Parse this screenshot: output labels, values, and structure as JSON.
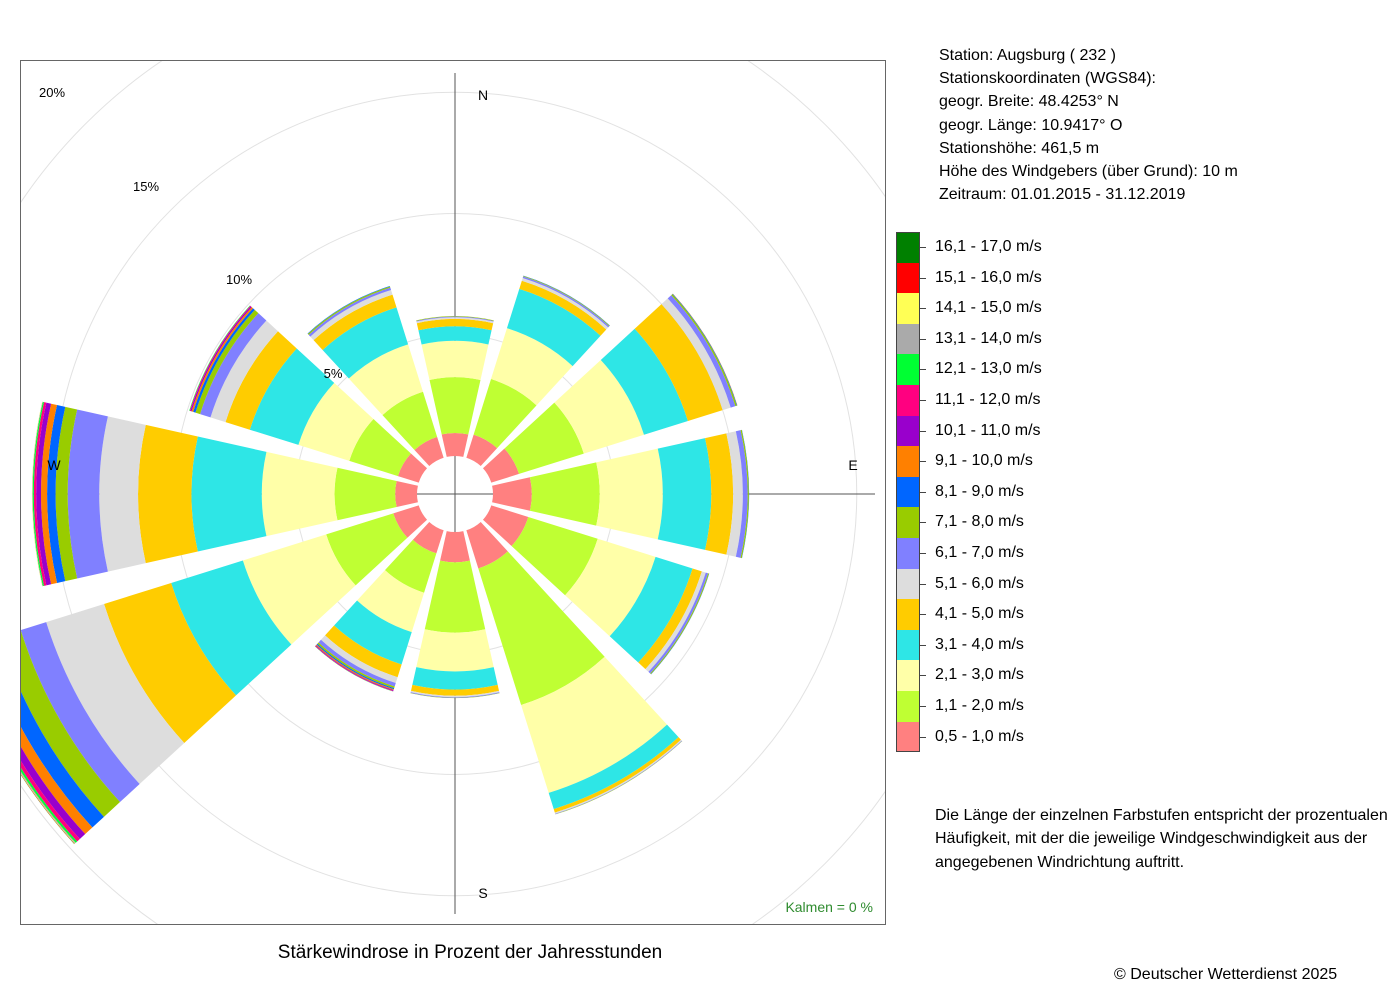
{
  "header": {
    "station": "Station:  Augsburg  ( 232 )",
    "coords_title": "Stationskoordinaten (WGS84):",
    "latitude": "geogr. Breite: 48.4253° N",
    "longitude": "geogr. Länge: 10.9417° O",
    "elevation": "Stationshöhe: 461,5 m",
    "sensor_height": "Höhe des Windgebers (über Grund): 10 m",
    "period": "Zeitraum: 01.01.2015 - 31.12.2019"
  },
  "note": [
    "Die Länge der einzelnen Farbstufen entspricht der prozentualen",
    "Häufigkeit, mit der die jeweilige Windgeschwindigkeit aus der",
    "angegebenen Windrichtung auftritt."
  ],
  "calm": "Kalmen  =  0 %",
  "copyright": "© Deutscher Wetterdienst  2025",
  "chart_data": {
    "type": "windrose",
    "title": "Stärkewindrose in Prozent der Jahresstunden",
    "unit": "%",
    "ring_values": [
      5,
      10,
      15,
      20
    ],
    "ring_labels": [
      "5%",
      "10%",
      "15%",
      "20%"
    ],
    "compass_labels": {
      "N": "N",
      "E": "E",
      "S": "S",
      "W": "W"
    },
    "directions_deg": [
      0,
      30,
      60,
      90,
      120,
      150,
      180,
      210,
      240,
      270,
      300,
      330
    ],
    "speed_classes": [
      {
        "label": "0,5 - 1,0 m/s",
        "color": "#ff8080"
      },
      {
        "label": "1,1 - 2,0 m/s",
        "color": "#bfff33"
      },
      {
        "label": "2,1 - 3,0 m/s",
        "color": "#ffffa8"
      },
      {
        "label": "3,1 - 4,0 m/s",
        "color": "#2ee6e6"
      },
      {
        "label": "4,1 - 5,0 m/s",
        "color": "#ffcc00"
      },
      {
        "label": "5,1 - 6,0 m/s",
        "color": "#dddddd"
      },
      {
        "label": "6,1 - 7,0 m/s",
        "color": "#8080ff"
      },
      {
        "label": "7,1 - 8,0 m/s",
        "color": "#99cc00"
      },
      {
        "label": "8,1 - 9,0 m/s",
        "color": "#0066ff"
      },
      {
        "label": "9,1 - 10,0 m/s",
        "color": "#ff8000"
      },
      {
        "label": "10,1 - 11,0 m/s",
        "color": "#9900cc"
      },
      {
        "label": "11,1 - 12,0 m/s",
        "color": "#ff0080"
      },
      {
        "label": "12,1 - 13,0 m/s",
        "color": "#00ff33"
      },
      {
        "label": "13,1 - 14,0 m/s",
        "color": "#aaaaaa"
      },
      {
        "label": "14,1 - 15,0 m/s",
        "color": "#ffff55"
      },
      {
        "label": "15,1 - 16,0 m/s",
        "color": "#ff0000"
      },
      {
        "label": "16,1 - 17,0 m/s",
        "color": "#008000"
      }
    ],
    "series": [
      {
        "dir": 0,
        "values": [
          0.95,
          2.3,
          1.5,
          0.6,
          0.3,
          0.07,
          0.03,
          0.02,
          0,
          0,
          0,
          0,
          0,
          0,
          0,
          0,
          0
        ]
      },
      {
        "dir": 30,
        "values": [
          1.0,
          2.4,
          2.2,
          1.7,
          0.35,
          0.12,
          0.06,
          0.03,
          0.01,
          0,
          0,
          0,
          0,
          0,
          0,
          0,
          0
        ]
      },
      {
        "dir": 60,
        "values": [
          1.2,
          2.8,
          2.6,
          1.9,
          1.5,
          0.35,
          0.2,
          0.06,
          0.02,
          0.01,
          0,
          0,
          0,
          0,
          0,
          0,
          0
        ]
      },
      {
        "dir": 90,
        "values": [
          1.6,
          2.8,
          2.6,
          2.0,
          0.9,
          0.4,
          0.2,
          0.05,
          0.01,
          0,
          0,
          0,
          0,
          0,
          0,
          0,
          0
        ]
      },
      {
        "dir": 120,
        "values": [
          1.6,
          3.0,
          2.5,
          1.6,
          0.4,
          0.17,
          0.1,
          0.04,
          0.01,
          0,
          0,
          0,
          0,
          0,
          0,
          0,
          0
        ]
      },
      {
        "dir": 150,
        "values": [
          1.65,
          5.9,
          3.8,
          0.7,
          0.15,
          0.05,
          0.02,
          0.01,
          0,
          0,
          0,
          0,
          0,
          0,
          0,
          0,
          0
        ]
      },
      {
        "dir": 180,
        "values": [
          1.25,
          2.9,
          1.6,
          0.75,
          0.25,
          0.06,
          0.03,
          0.01,
          0,
          0,
          0,
          0,
          0,
          0,
          0,
          0,
          0
        ]
      },
      {
        "dir": 210,
        "values": [
          1.0,
          1.7,
          1.7,
          1.4,
          0.55,
          0.25,
          0.15,
          0.07,
          0.05,
          0.04,
          0.03,
          0.02,
          0.01,
          0,
          0,
          0,
          0
        ]
      },
      {
        "dir": 240,
        "values": [
          1.1,
          2.9,
          3.6,
          3.1,
          2.9,
          2.5,
          1.1,
          0.9,
          0.65,
          0.4,
          0.3,
          0.15,
          0.08,
          0.04,
          0.02,
          0.01,
          0.01
        ]
      },
      {
        "dir": 270,
        "values": [
          0.9,
          2.5,
          3.0,
          2.9,
          2.2,
          1.6,
          1.3,
          0.5,
          0.35,
          0.25,
          0.2,
          0.1,
          0.05,
          0.02,
          0.01,
          0,
          0
        ]
      },
      {
        "dir": 300,
        "values": [
          0.9,
          2.1,
          2.2,
          2.1,
          1.05,
          0.65,
          0.45,
          0.2,
          0.1,
          0.07,
          0.05,
          0.03,
          0.02,
          0,
          0,
          0,
          0
        ]
      },
      {
        "dir": 330,
        "values": [
          0.9,
          1.95,
          2.05,
          1.6,
          0.55,
          0.2,
          0.1,
          0.05,
          0.02,
          0,
          0,
          0,
          0,
          0,
          0,
          0,
          0
        ]
      }
    ]
  }
}
